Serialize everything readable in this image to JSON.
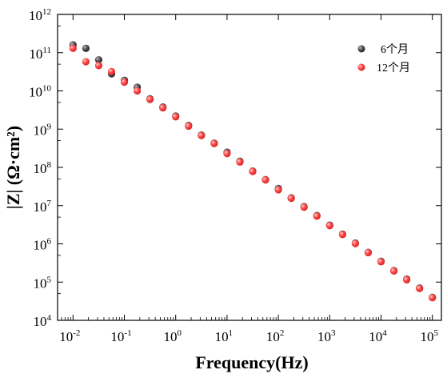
{
  "chart_data": {
    "type": "scatter",
    "xscale": "log",
    "yscale": "log",
    "xlim": [
      0.005,
      150000
    ],
    "ylim": [
      10000,
      1000000000000
    ],
    "xlabel": "Frequency(Hz)",
    "ylabel": "|Z| (Ω·cm²)",
    "legend_position": "top-right",
    "grid": false,
    "x_ticks": [
      {
        "base": "10",
        "exp": "-2",
        "value": 0.01
      },
      {
        "base": "10",
        "exp": "-1",
        "value": 0.1
      },
      {
        "base": "10",
        "exp": "0",
        "value": 1
      },
      {
        "base": "10",
        "exp": "1",
        "value": 10
      },
      {
        "base": "10",
        "exp": "2",
        "value": 100
      },
      {
        "base": "10",
        "exp": "3",
        "value": 1000
      },
      {
        "base": "10",
        "exp": "4",
        "value": 10000
      },
      {
        "base": "10",
        "exp": "5",
        "value": 100000
      }
    ],
    "y_ticks": [
      {
        "base": "10",
        "exp": "4",
        "value": 10000
      },
      {
        "base": "10",
        "exp": "5",
        "value": 100000
      },
      {
        "base": "10",
        "exp": "6",
        "value": 1000000
      },
      {
        "base": "10",
        "exp": "7",
        "value": 10000000
      },
      {
        "base": "10",
        "exp": "8",
        "value": 100000000
      },
      {
        "base": "10",
        "exp": "9",
        "value": 1000000000
      },
      {
        "base": "10",
        "exp": "10",
        "value": 10000000000
      },
      {
        "base": "10",
        "exp": "11",
        "value": 100000000000
      },
      {
        "base": "10",
        "exp": "12",
        "value": 1000000000000
      }
    ],
    "series": [
      {
        "name": "6个月",
        "color": "#3a3a3a",
        "x": [
          0.01,
          0.0178,
          0.0316,
          0.0562,
          0.1,
          0.178,
          0.316,
          0.562,
          1,
          1.78,
          3.16,
          5.62,
          10,
          17.8,
          31.6,
          56.2,
          100,
          178,
          316,
          562,
          1000,
          1780,
          3160,
          5620,
          10000,
          17800,
          31600,
          56200,
          100000
        ],
        "y": [
          160000000000.0,
          130000000000.0,
          65000000000.0,
          28000000000.0,
          19000000000.0,
          12500000000.0,
          6200000000.0,
          3800000000.0,
          2200000000.0,
          1250000000.0,
          700000000.0,
          430000000.0,
          250000000.0,
          145000000.0,
          80000000.0,
          48000000.0,
          28000000.0,
          16000000.0,
          9400000.0,
          5500000.0,
          3100000.0,
          1800000.0,
          1050000.0,
          600000.0,
          350000.0,
          200000.0,
          120000.0,
          70000.0,
          40000.0
        ]
      },
      {
        "name": "12个月",
        "color": "#ff3b3b",
        "x": [
          0.01,
          0.0178,
          0.0316,
          0.0562,
          0.1,
          0.178,
          0.316,
          0.562,
          1,
          1.78,
          3.16,
          5.62,
          10,
          17.8,
          31.6,
          56.2,
          100,
          178,
          316,
          562,
          1000,
          1780,
          3160,
          5620,
          10000,
          17800,
          31600,
          56200,
          100000
        ],
        "y": [
          130000000000.0,
          58000000000.0,
          46000000000.0,
          32000000000.0,
          17000000000.0,
          10000000000.0,
          6000000000.0,
          3600000000.0,
          2100000000.0,
          1200000000.0,
          680000000.0,
          420000000.0,
          230000000.0,
          138000000.0,
          78000000.0,
          47000000.0,
          26000000.0,
          15500000.0,
          9100000.0,
          5300000.0,
          3000000.0,
          1750000.0,
          1020000.0,
          590000.0,
          340000.0,
          195000.0,
          115000.0,
          68000.0,
          39000.0
        ]
      }
    ]
  }
}
